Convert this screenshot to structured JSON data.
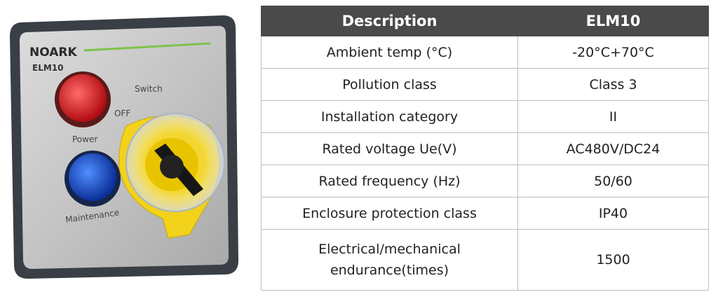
{
  "product": {
    "brand": "NOARK",
    "model": "ELM10",
    "labels": [
      "Switch",
      "OFF",
      "Power",
      "Maintenance"
    ]
  },
  "table": {
    "header": [
      "Description",
      "ELM10"
    ],
    "rows": [
      [
        "Ambient temp (°C)",
        "-20°C+70°C"
      ],
      [
        "Pollution class",
        "Class 3"
      ],
      [
        "Installation category",
        "II"
      ],
      [
        "Rated voltage Ue(V)",
        "AC480V/DC24"
      ],
      [
        "Rated frequency (Hz)",
        "50/60"
      ],
      [
        "Enclosure protection class",
        "IP40"
      ],
      [
        "Electrical/mechanical endurance(times)",
        "1500"
      ]
    ]
  }
}
